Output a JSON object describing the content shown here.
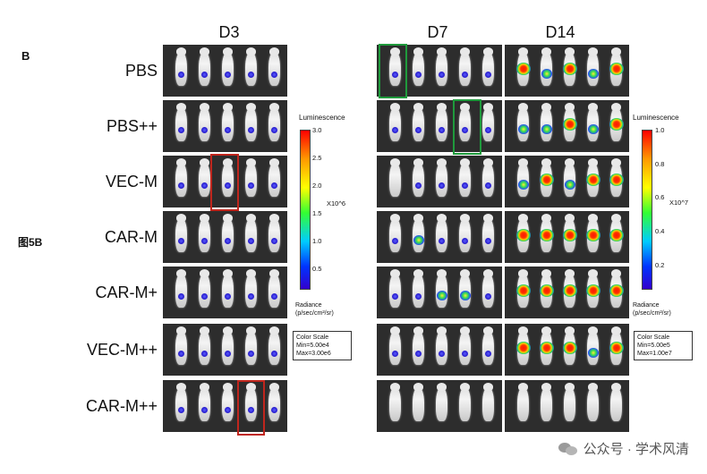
{
  "panel_letter": "B",
  "figure_label": "图5B",
  "columns": [
    "D3",
    "D7",
    "D14"
  ],
  "rows": [
    "PBS",
    "PBS++",
    "VEC-M",
    "CAR-M",
    "CAR-M+",
    "VEC-M++",
    "CAR-M++"
  ],
  "scale_left": {
    "title": "Luminescence",
    "ticks": [
      "3.0",
      "2.5",
      "2.0",
      "1.5",
      "1.0",
      "0.5"
    ],
    "unit": "X10^6",
    "foot_line1": "Radiance",
    "foot_line2": "(p/sec/cm²/sr)",
    "box_line1": "Color Scale",
    "box_line2": "Min=5.00e4",
    "box_line3": "Max=3.00e6"
  },
  "scale_right": {
    "title": "Luminescence",
    "ticks": [
      "1.0",
      "0.8",
      "0.6",
      "0.4",
      "0.2"
    ],
    "unit": "X10^7",
    "foot_line1": "Radiance",
    "foot_line2": "(p/sec/cm²/sr)",
    "box_line1": "Color Scale",
    "box_line2": "Min=5.00e5",
    "box_line3": "Max=1.00e7"
  },
  "colors": {
    "highlight_red": "#c0261d",
    "highlight_green": "#1f9a3c",
    "panel_bg": "#2d2d2d"
  },
  "watermark": "公众号 · 学术风清"
}
